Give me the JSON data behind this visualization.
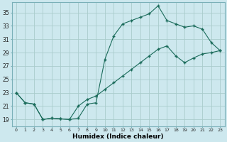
{
  "xlabel": "Humidex (Indice chaleur)",
  "bg_color": "#cde8ee",
  "line_color": "#1a6b5a",
  "grid_color": "#aacccc",
  "xlim": [
    -0.5,
    23.5
  ],
  "ylim": [
    18,
    36.5
  ],
  "yticks": [
    19,
    21,
    23,
    25,
    27,
    29,
    31,
    33,
    35
  ],
  "xticks": [
    0,
    1,
    2,
    3,
    4,
    5,
    6,
    7,
    8,
    9,
    10,
    11,
    12,
    13,
    14,
    15,
    16,
    17,
    18,
    19,
    20,
    21,
    22,
    23
  ],
  "line1_x": [
    0,
    1,
    2,
    3,
    4,
    5,
    6,
    7,
    8,
    9,
    10,
    11,
    12,
    13,
    14,
    15,
    16,
    17,
    18,
    19,
    20,
    21,
    22,
    23
  ],
  "line1_y": [
    23.0,
    21.5,
    21.3,
    19.0,
    19.2,
    19.1,
    19.0,
    19.2,
    21.3,
    21.5,
    28.0,
    31.5,
    33.3,
    33.8,
    34.3,
    34.8,
    36.0,
    33.8,
    33.3,
    32.8,
    33.0,
    32.5,
    30.5,
    29.3
  ],
  "line2_x": [
    0,
    1,
    2,
    3,
    4,
    5,
    6,
    7,
    8,
    9,
    10,
    11,
    12,
    13,
    14,
    15,
    16,
    17,
    18,
    19,
    20,
    21,
    22,
    23
  ],
  "line2_y": [
    23.0,
    21.5,
    21.3,
    19.0,
    19.2,
    19.1,
    19.0,
    21.0,
    22.0,
    22.5,
    23.5,
    24.5,
    25.5,
    26.5,
    27.5,
    28.5,
    29.5,
    30.0,
    28.5,
    27.5,
    28.2,
    28.8,
    29.0,
    29.3
  ]
}
